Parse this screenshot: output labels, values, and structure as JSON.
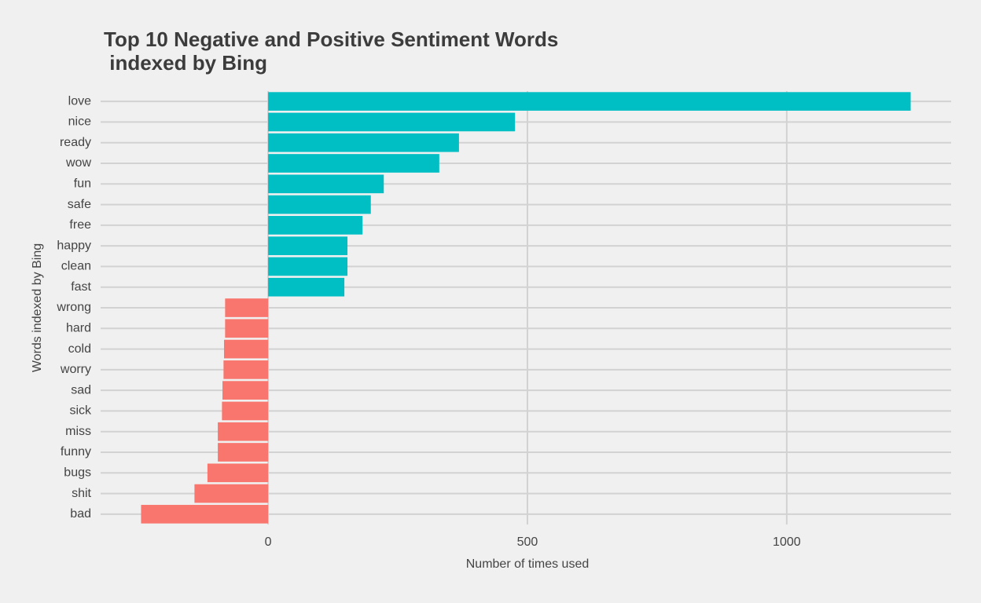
{
  "chart_data": {
    "type": "bar",
    "orientation": "horizontal",
    "title": [
      "Top 10 Negative and Positive Sentiment Words",
      " indexed by Bing"
    ],
    "x_label": "Number of times used",
    "y_label": "Words indexed by Bing",
    "categories": [
      "love",
      "nice",
      "ready",
      "wow",
      "fun",
      "safe",
      "free",
      "happy",
      "clean",
      "fast",
      "wrong",
      "hard",
      "cold",
      "worry",
      "sad",
      "sick",
      "miss",
      "funny",
      "bugs",
      "shit",
      "bad"
    ],
    "values": [
      1239,
      476,
      368,
      330,
      223,
      198,
      182,
      153,
      153,
      147,
      -83,
      -83,
      -85,
      -86,
      -88,
      -89,
      -97,
      -97,
      -117,
      -142,
      -245
    ],
    "positive_color": "#00bfc4",
    "negative_color": "#f8766d",
    "xlim": [
      -323,
      1317
    ],
    "xticks": [
      0,
      500,
      1000
    ],
    "grid": true
  }
}
